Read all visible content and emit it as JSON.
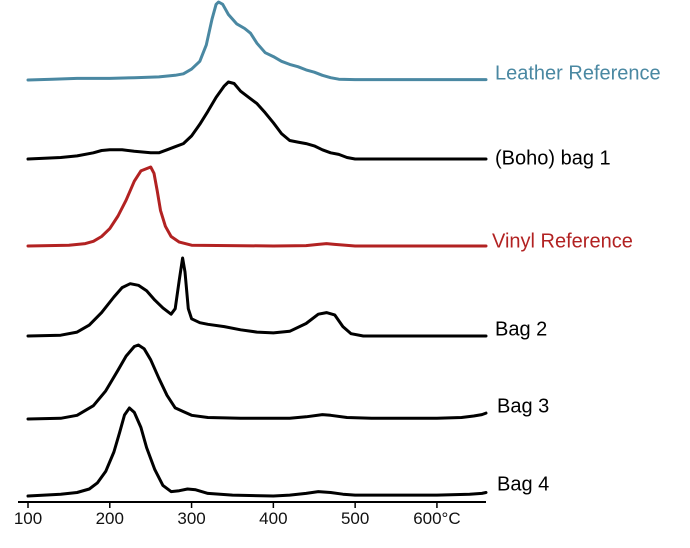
{
  "chart_data": {
    "type": "line",
    "title": "",
    "xlabel": "",
    "ylabel": "",
    "xlim": [
      100,
      660
    ],
    "x_ticks": [
      100,
      200,
      300,
      400,
      500,
      600
    ],
    "x_tick_labels": [
      "100",
      "200",
      "300",
      "400",
      "500",
      "600°C"
    ],
    "grid": false,
    "legend": "labels at right of each trace",
    "y_axis_shown": false,
    "series": [
      {
        "name": "Leather Reference",
        "color": "#4a88a2",
        "points": [
          [
            100,
            0
          ],
          [
            130,
            0.01
          ],
          [
            160,
            0.02
          ],
          [
            200,
            0.02
          ],
          [
            230,
            0.03
          ],
          [
            260,
            0.04
          ],
          [
            280,
            0.06
          ],
          [
            290,
            0.08
          ],
          [
            300,
            0.14
          ],
          [
            310,
            0.24
          ],
          [
            318,
            0.45
          ],
          [
            325,
            0.78
          ],
          [
            330,
            0.97
          ],
          [
            333,
            1.0
          ],
          [
            338,
            0.97
          ],
          [
            345,
            0.84
          ],
          [
            355,
            0.72
          ],
          [
            365,
            0.66
          ],
          [
            372,
            0.6
          ],
          [
            380,
            0.47
          ],
          [
            390,
            0.35
          ],
          [
            400,
            0.3
          ],
          [
            410,
            0.24
          ],
          [
            420,
            0.2
          ],
          [
            430,
            0.17
          ],
          [
            440,
            0.13
          ],
          [
            450,
            0.1
          ],
          [
            460,
            0.06
          ],
          [
            470,
            0.03
          ],
          [
            480,
            0.01
          ],
          [
            500,
            0.005
          ],
          [
            560,
            0.005
          ],
          [
            660,
            0.005
          ]
        ]
      },
      {
        "name": "(Boho) bag 1",
        "color": "#000000",
        "points": [
          [
            100,
            0
          ],
          [
            120,
            0.01
          ],
          [
            140,
            0.02
          ],
          [
            160,
            0.04
          ],
          [
            180,
            0.08
          ],
          [
            190,
            0.11
          ],
          [
            200,
            0.12
          ],
          [
            215,
            0.12
          ],
          [
            230,
            0.1
          ],
          [
            250,
            0.08
          ],
          [
            260,
            0.08
          ],
          [
            270,
            0.12
          ],
          [
            280,
            0.16
          ],
          [
            290,
            0.2
          ],
          [
            300,
            0.3
          ],
          [
            310,
            0.45
          ],
          [
            320,
            0.62
          ],
          [
            330,
            0.8
          ],
          [
            340,
            0.95
          ],
          [
            345,
            1.0
          ],
          [
            352,
            0.98
          ],
          [
            360,
            0.88
          ],
          [
            370,
            0.8
          ],
          [
            380,
            0.72
          ],
          [
            390,
            0.6
          ],
          [
            400,
            0.47
          ],
          [
            410,
            0.33
          ],
          [
            420,
            0.24
          ],
          [
            430,
            0.22
          ],
          [
            440,
            0.2
          ],
          [
            450,
            0.17
          ],
          [
            460,
            0.12
          ],
          [
            470,
            0.08
          ],
          [
            480,
            0.06
          ],
          [
            490,
            0.02
          ],
          [
            500,
            0.0
          ],
          [
            560,
            0.0
          ],
          [
            660,
            0.0
          ]
        ]
      },
      {
        "name": "Vinyl Reference",
        "color": "#b22222",
        "points": [
          [
            100,
            0
          ],
          [
            150,
            0.01
          ],
          [
            170,
            0.03
          ],
          [
            180,
            0.06
          ],
          [
            190,
            0.12
          ],
          [
            200,
            0.22
          ],
          [
            210,
            0.38
          ],
          [
            220,
            0.58
          ],
          [
            230,
            0.82
          ],
          [
            238,
            0.95
          ],
          [
            245,
            0.98
          ],
          [
            250,
            1.0
          ],
          [
            254,
            0.92
          ],
          [
            258,
            0.7
          ],
          [
            262,
            0.45
          ],
          [
            268,
            0.25
          ],
          [
            275,
            0.12
          ],
          [
            285,
            0.05
          ],
          [
            300,
            0.01
          ],
          [
            400,
            0.0
          ],
          [
            440,
            0.005
          ],
          [
            455,
            0.02
          ],
          [
            465,
            0.03
          ],
          [
            475,
            0.02
          ],
          [
            500,
            0.0
          ],
          [
            660,
            0.0
          ]
        ]
      },
      {
        "name": "Bag 2",
        "color": "#000000",
        "points": [
          [
            100,
            0
          ],
          [
            140,
            0.01
          ],
          [
            160,
            0.05
          ],
          [
            175,
            0.14
          ],
          [
            190,
            0.3
          ],
          [
            205,
            0.5
          ],
          [
            215,
            0.62
          ],
          [
            225,
            0.67
          ],
          [
            235,
            0.65
          ],
          [
            245,
            0.58
          ],
          [
            255,
            0.46
          ],
          [
            265,
            0.36
          ],
          [
            275,
            0.28
          ],
          [
            280,
            0.35
          ],
          [
            285,
            0.72
          ],
          [
            289,
            1.0
          ],
          [
            292,
            0.82
          ],
          [
            296,
            0.35
          ],
          [
            300,
            0.22
          ],
          [
            310,
            0.17
          ],
          [
            320,
            0.15
          ],
          [
            340,
            0.12
          ],
          [
            360,
            0.08
          ],
          [
            380,
            0.05
          ],
          [
            400,
            0.04
          ],
          [
            420,
            0.06
          ],
          [
            440,
            0.16
          ],
          [
            455,
            0.28
          ],
          [
            465,
            0.3
          ],
          [
            475,
            0.27
          ],
          [
            485,
            0.12
          ],
          [
            495,
            0.03
          ],
          [
            510,
            0.0
          ],
          [
            560,
            0.0
          ],
          [
            660,
            0.0
          ]
        ]
      },
      {
        "name": "Bag 3",
        "color": "#000000",
        "points": [
          [
            100,
            0
          ],
          [
            140,
            0.01
          ],
          [
            160,
            0.05
          ],
          [
            180,
            0.18
          ],
          [
            195,
            0.38
          ],
          [
            210,
            0.66
          ],
          [
            220,
            0.85
          ],
          [
            230,
            0.98
          ],
          [
            235,
            1.0
          ],
          [
            242,
            0.95
          ],
          [
            250,
            0.8
          ],
          [
            260,
            0.55
          ],
          [
            270,
            0.32
          ],
          [
            280,
            0.15
          ],
          [
            290,
            0.1
          ],
          [
            300,
            0.05
          ],
          [
            320,
            0.02
          ],
          [
            360,
            0.01
          ],
          [
            420,
            0.01
          ],
          [
            440,
            0.03
          ],
          [
            460,
            0.06
          ],
          [
            470,
            0.05
          ],
          [
            490,
            0.02
          ],
          [
            520,
            0.01
          ],
          [
            560,
            0.01
          ],
          [
            600,
            0.01
          ],
          [
            630,
            0.02
          ],
          [
            645,
            0.04
          ],
          [
            655,
            0.06
          ],
          [
            660,
            0.08
          ]
        ]
      },
      {
        "name": "Bag 4",
        "color": "#000000",
        "points": [
          [
            100,
            0
          ],
          [
            120,
            0.01
          ],
          [
            140,
            0.02
          ],
          [
            160,
            0.04
          ],
          [
            175,
            0.08
          ],
          [
            185,
            0.15
          ],
          [
            195,
            0.28
          ],
          [
            205,
            0.5
          ],
          [
            212,
            0.72
          ],
          [
            218,
            0.92
          ],
          [
            224,
            1.0
          ],
          [
            230,
            0.95
          ],
          [
            238,
            0.78
          ],
          [
            245,
            0.55
          ],
          [
            255,
            0.3
          ],
          [
            265,
            0.12
          ],
          [
            275,
            0.05
          ],
          [
            285,
            0.06
          ],
          [
            295,
            0.08
          ],
          [
            305,
            0.07
          ],
          [
            320,
            0.03
          ],
          [
            350,
            0.01
          ],
          [
            400,
            0.0
          ],
          [
            420,
            0.01
          ],
          [
            440,
            0.03
          ],
          [
            455,
            0.05
          ],
          [
            470,
            0.04
          ],
          [
            485,
            0.02
          ],
          [
            500,
            0.01
          ],
          [
            540,
            0.01
          ],
          [
            600,
            0.01
          ],
          [
            640,
            0.02
          ],
          [
            655,
            0.03
          ],
          [
            660,
            0.04
          ]
        ]
      }
    ]
  }
}
